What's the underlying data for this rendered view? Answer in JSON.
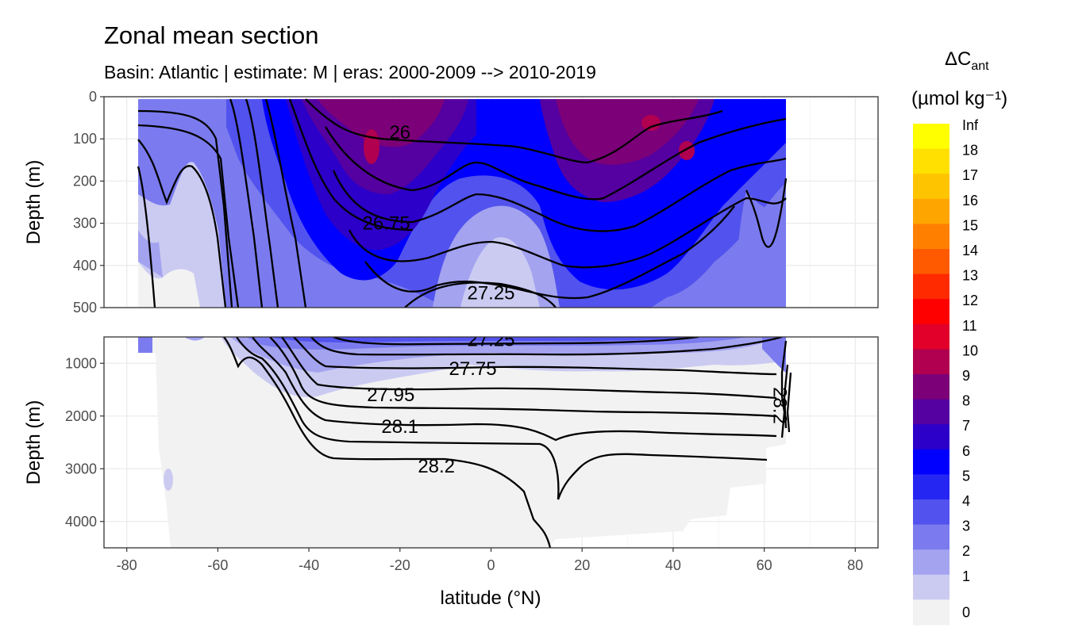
{
  "chart_data": {
    "type": "contour",
    "title": "Zonal mean section",
    "subtitle": "Basin: Atlantic | estimate: M  | eras: 2000-2009 --> 2010-2019",
    "xlabel": "latitude (°N)",
    "ylabel": "Depth (m)",
    "xlim": [
      -85,
      85
    ],
    "x_ticks": [
      "-80",
      "-60",
      "-40",
      "-20",
      "0",
      "20",
      "40",
      "60",
      "80"
    ],
    "x_tick_values": [
      -80,
      -60,
      -40,
      -20,
      0,
      20,
      40,
      60,
      80
    ],
    "panels": [
      {
        "name": "upper",
        "ylim": [
          0,
          500
        ],
        "y_ticks": [
          "0",
          "100",
          "200",
          "300",
          "400",
          "500"
        ],
        "y_tick_values": [
          0,
          100,
          200,
          300,
          400,
          500
        ]
      },
      {
        "name": "lower",
        "ylim": [
          500,
          4500
        ],
        "y_ticks": [
          "1000",
          "2000",
          "3000",
          "4000"
        ],
        "y_tick_values": [
          1000,
          2000,
          3000,
          4000
        ]
      }
    ],
    "fill_variable": "ΔCant",
    "fill_unit": "(µmol kg⁻¹)",
    "contour_variable": "potential density anomaly",
    "contour_labels": [
      {
        "text": "26",
        "lat": -20,
        "depth": 85
      },
      {
        "text": "26.75",
        "lat": -23,
        "depth": 300
      },
      {
        "text": "27.25",
        "lat": 0,
        "depth": 465
      },
      {
        "text": "27.25",
        "lat": 0,
        "depth": 550
      },
      {
        "text": "27.75",
        "lat": -4,
        "depth": 1100
      },
      {
        "text": "27.95",
        "lat": -22,
        "depth": 1600
      },
      {
        "text": "28.1",
        "lat": -20,
        "depth": 2200
      },
      {
        "text": "28.2",
        "lat": -12,
        "depth": 2950
      },
      {
        "text": "28.2",
        "lat": 63.5,
        "depth": 1800
      }
    ],
    "legend": {
      "title_main": "ΔC",
      "title_sub": "ant",
      "unit": "(µmol kg⁻¹)",
      "bins": [
        {
          "label": "Inf",
          "color": "#ffff00"
        },
        {
          "label": "18",
          "color": "#ffe000"
        },
        {
          "label": "17",
          "color": "#ffc400"
        },
        {
          "label": "16",
          "color": "#ffa500"
        },
        {
          "label": "15",
          "color": "#ff8000"
        },
        {
          "label": "14",
          "color": "#ff5a00"
        },
        {
          "label": "13",
          "color": "#ff2a00"
        },
        {
          "label": "12",
          "color": "#ff0000"
        },
        {
          "label": "11",
          "color": "#e2002a"
        },
        {
          "label": "10",
          "color": "#b0004f"
        },
        {
          "label": "9",
          "color": "#7c0078"
        },
        {
          "label": "8",
          "color": "#5500a0"
        },
        {
          "label": "7",
          "color": "#2c00c8"
        },
        {
          "label": "6",
          "color": "#0000ff"
        },
        {
          "label": "5",
          "color": "#2626f2"
        },
        {
          "label": "4",
          "color": "#5252ee"
        },
        {
          "label": "3",
          "color": "#7b7bef"
        },
        {
          "label": "2",
          "color": "#a3a3f0"
        },
        {
          "label": "1",
          "color": "#cbcbf2"
        },
        {
          "label": "0",
          "color": "#f2f2f2"
        }
      ]
    }
  }
}
